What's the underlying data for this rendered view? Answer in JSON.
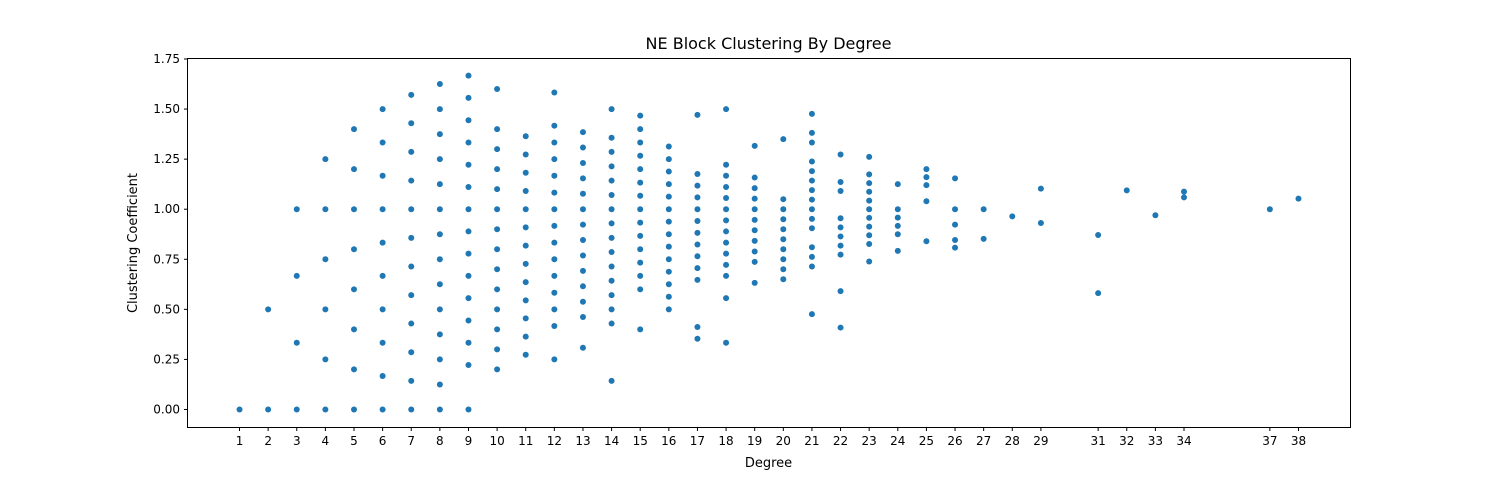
{
  "chart_data": {
    "type": "scatter",
    "title": "NE Block Clustering By Degree",
    "xlabel": "Degree",
    "ylabel": "Clustering Coefficient",
    "xlim": [
      -0.8,
      39.8
    ],
    "ylim": [
      -0.0875,
      1.75
    ],
    "x_ticks": [
      1,
      2,
      3,
      4,
      5,
      6,
      7,
      8,
      9,
      10,
      11,
      12,
      13,
      14,
      15,
      16,
      17,
      18,
      19,
      20,
      21,
      22,
      23,
      24,
      25,
      26,
      27,
      28,
      29,
      31,
      32,
      33,
      34,
      37,
      38
    ],
    "y_ticks": [
      "0.00",
      "0.25",
      "0.50",
      "0.75",
      "1.00",
      "1.25",
      "1.50",
      "1.75"
    ],
    "grid": false,
    "marker_color": "#1f77b4",
    "points_by_degree": [
      {
        "x": 1,
        "y": [
          0
        ]
      },
      {
        "x": 2,
        "y": [
          0,
          0.5
        ]
      },
      {
        "x": 3,
        "y": [
          0,
          0.333,
          0.667,
          1
        ]
      },
      {
        "x": 4,
        "y": [
          0,
          0.25,
          0.5,
          0.75,
          1,
          1.25
        ]
      },
      {
        "x": 5,
        "y": [
          0,
          0.2,
          0.4,
          0.6,
          0.8,
          1,
          1.2,
          1.4
        ]
      },
      {
        "x": 6,
        "y": [
          0,
          0.167,
          0.333,
          0.5,
          0.667,
          0.833,
          1,
          1.167,
          1.333,
          1.5
        ]
      },
      {
        "x": 7,
        "y": [
          0,
          0.143,
          0.286,
          0.429,
          0.571,
          0.714,
          0.857,
          1,
          1.143,
          1.286,
          1.429,
          1.571
        ]
      },
      {
        "x": 8,
        "y": [
          0,
          0.125,
          0.25,
          0.375,
          0.5,
          0.625,
          0.75,
          0.875,
          1,
          1.125,
          1.25,
          1.375,
          1.5,
          1.625
        ]
      },
      {
        "x": 9,
        "y": [
          0,
          0.222,
          0.333,
          0.444,
          0.556,
          0.667,
          0.778,
          0.889,
          1,
          1.111,
          1.222,
          1.333,
          1.444,
          1.556,
          1.667
        ]
      },
      {
        "x": 10,
        "y": [
          0.2,
          0.3,
          0.4,
          0.5,
          0.6,
          0.7,
          0.8,
          0.9,
          1,
          1.1,
          1.2,
          1.3,
          1.4,
          1.6
        ]
      },
      {
        "x": 11,
        "y": [
          0.273,
          0.364,
          0.455,
          0.545,
          0.636,
          0.727,
          0.818,
          0.909,
          1,
          1.091,
          1.182,
          1.273,
          1.364
        ]
      },
      {
        "x": 12,
        "y": [
          0.25,
          0.417,
          0.5,
          0.583,
          0.667,
          0.75,
          0.833,
          0.917,
          1,
          1.083,
          1.167,
          1.25,
          1.333,
          1.417,
          1.583
        ]
      },
      {
        "x": 13,
        "y": [
          0.308,
          0.462,
          0.538,
          0.615,
          0.692,
          0.769,
          0.846,
          0.923,
          1,
          1.077,
          1.154,
          1.231,
          1.308,
          1.385
        ]
      },
      {
        "x": 14,
        "y": [
          0.143,
          0.429,
          0.5,
          0.571,
          0.643,
          0.714,
          0.786,
          0.857,
          0.929,
          1,
          1.071,
          1.143,
          1.214,
          1.286,
          1.357,
          1.5
        ]
      },
      {
        "x": 15,
        "y": [
          0.4,
          0.6,
          0.667,
          0.733,
          0.8,
          0.867,
          0.933,
          1,
          1.067,
          1.133,
          1.2,
          1.267,
          1.333,
          1.4,
          1.467
        ]
      },
      {
        "x": 16,
        "y": [
          0.5,
          0.563,
          0.625,
          0.688,
          0.75,
          0.813,
          0.875,
          0.938,
          1,
          1.063,
          1.125,
          1.188,
          1.25,
          1.313
        ]
      },
      {
        "x": 17,
        "y": [
          0.353,
          0.412,
          0.647,
          0.706,
          0.765,
          0.824,
          0.882,
          0.941,
          1,
          1.059,
          1.118,
          1.176,
          1.471
        ]
      },
      {
        "x": 18,
        "y": [
          0.333,
          0.556,
          0.667,
          0.722,
          0.778,
          0.833,
          0.889,
          0.944,
          1,
          1.056,
          1.111,
          1.167,
          1.222,
          1.5
        ]
      },
      {
        "x": 19,
        "y": [
          0.632,
          0.737,
          0.789,
          0.842,
          0.895,
          0.947,
          1,
          1.053,
          1.105,
          1.158,
          1.316
        ]
      },
      {
        "x": 20,
        "y": [
          0.65,
          0.7,
          0.75,
          0.8,
          0.85,
          0.9,
          0.95,
          1,
          1.05,
          1.35
        ]
      },
      {
        "x": 21,
        "y": [
          0.476,
          0.714,
          0.762,
          0.81,
          0.905,
          0.952,
          1,
          1.048,
          1.095,
          1.143,
          1.19,
          1.238,
          1.333,
          1.381,
          1.476
        ]
      },
      {
        "x": 22,
        "y": [
          0.409,
          0.591,
          0.773,
          0.818,
          0.864,
          0.909,
          0.955,
          1.091,
          1.136,
          1.273
        ]
      },
      {
        "x": 23,
        "y": [
          0.739,
          0.826,
          0.87,
          0.913,
          0.957,
          1,
          1.043,
          1.087,
          1.13,
          1.174,
          1.261
        ]
      },
      {
        "x": 24,
        "y": [
          0.792,
          0.875,
          0.917,
          0.958,
          1,
          1.125
        ]
      },
      {
        "x": 25,
        "y": [
          0.84,
          1.04,
          1.12,
          1.16,
          1.2
        ]
      },
      {
        "x": 26,
        "y": [
          0.808,
          0.846,
          0.923,
          1,
          1.154
        ]
      },
      {
        "x": 27,
        "y": [
          0.852,
          1
        ]
      },
      {
        "x": 28,
        "y": [
          0.964
        ]
      },
      {
        "x": 29,
        "y": [
          0.931,
          1.103
        ]
      },
      {
        "x": 31,
        "y": [
          0.581,
          0.871
        ]
      },
      {
        "x": 32,
        "y": [
          1.094
        ]
      },
      {
        "x": 33,
        "y": [
          0.97
        ]
      },
      {
        "x": 34,
        "y": [
          1.059,
          1.088
        ]
      },
      {
        "x": 37,
        "y": [
          1
        ]
      },
      {
        "x": 38,
        "y": [
          1.053
        ]
      }
    ]
  }
}
